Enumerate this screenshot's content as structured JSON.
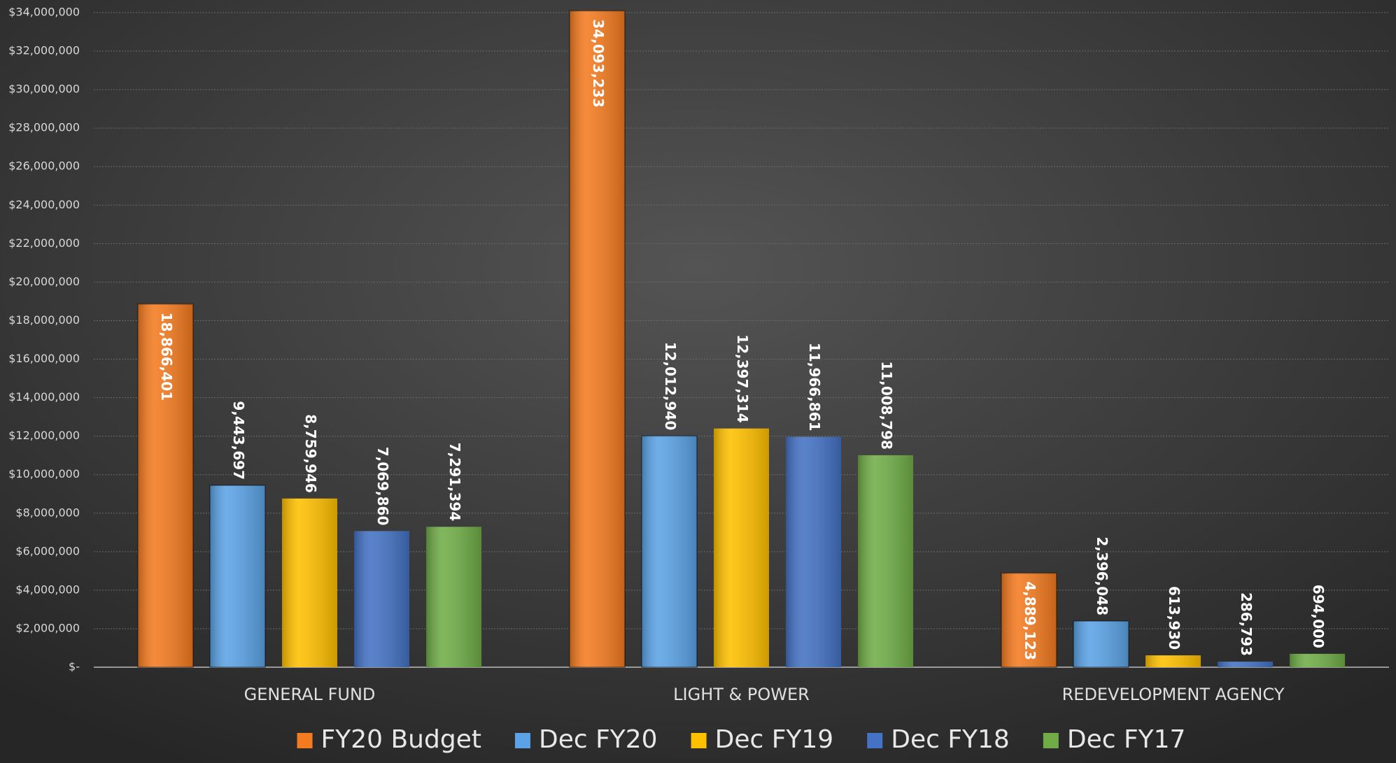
{
  "chart_data": {
    "type": "bar",
    "categories": [
      "GENERAL FUND",
      "LIGHT & POWER",
      "REDEVELOPMENT AGENCY"
    ],
    "series": [
      {
        "name": "FY20 Budget",
        "color": "#f47b20",
        "values": [
          18866401,
          34093233,
          4889123
        ],
        "value_labels": [
          "18,866,401",
          "34,093,233",
          "4,889,123"
        ]
      },
      {
        "name": "Dec FY20",
        "color": "#5ba3e6",
        "values": [
          9443697,
          12012940,
          2396048
        ],
        "value_labels": [
          "9,443,697",
          "12,012,940",
          "2,396,048"
        ]
      },
      {
        "name": "Dec FY19",
        "color": "#ffc000",
        "values": [
          8759946,
          12397314,
          613930
        ],
        "value_labels": [
          "8,759,946",
          "12,397,314",
          "613,930"
        ]
      },
      {
        "name": "Dec FY18",
        "color": "#4472c4",
        "values": [
          7069860,
          11966861,
          286793
        ],
        "value_labels": [
          "7,069,860",
          "11,966,861",
          "286,793"
        ]
      },
      {
        "name": "Dec FY17",
        "color": "#70ad47",
        "values": [
          7291394,
          11008798,
          694000
        ],
        "value_labels": [
          "7,291,394",
          "11,008,798",
          "694,000"
        ]
      }
    ],
    "ylim": [
      0,
      34000000
    ],
    "yticks": [
      {
        "value": 0,
        "label": "$-"
      },
      {
        "value": 2000000,
        "label": "$2,000,000"
      },
      {
        "value": 4000000,
        "label": "$4,000,000"
      },
      {
        "value": 6000000,
        "label": "$6,000,000"
      },
      {
        "value": 8000000,
        "label": "$8,000,000"
      },
      {
        "value": 10000000,
        "label": "$10,000,000"
      },
      {
        "value": 12000000,
        "label": "$12,000,000"
      },
      {
        "value": 14000000,
        "label": "$14,000,000"
      },
      {
        "value": 16000000,
        "label": "$16,000,000"
      },
      {
        "value": 18000000,
        "label": "$18,000,000"
      },
      {
        "value": 20000000,
        "label": "$20,000,000"
      },
      {
        "value": 22000000,
        "label": "$22,000,000"
      },
      {
        "value": 24000000,
        "label": "$24,000,000"
      },
      {
        "value": 26000000,
        "label": "$26,000,000"
      },
      {
        "value": 28000000,
        "label": "$28,000,000"
      },
      {
        "value": 30000000,
        "label": "$30,000,000"
      },
      {
        "value": 32000000,
        "label": "$32,000,000"
      },
      {
        "value": 34000000,
        "label": "$34,000,000"
      }
    ],
    "grid": true,
    "legend": "bottom"
  }
}
